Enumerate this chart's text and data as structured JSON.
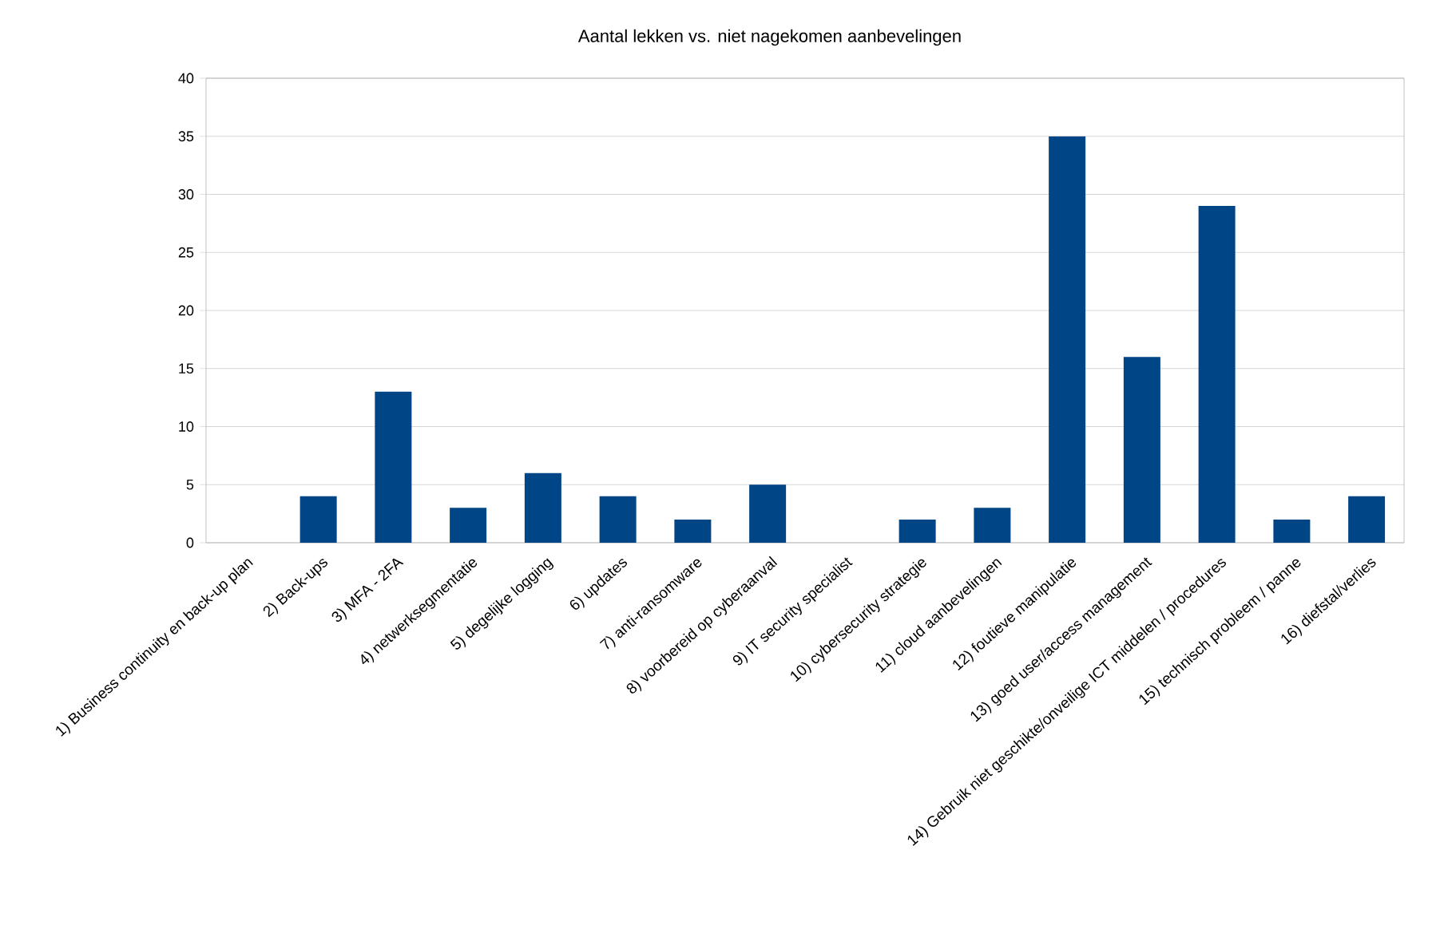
{
  "chart_data": {
    "type": "bar",
    "title": "Aantal lekken vs. niet nagekomen aanbevelingen",
    "categories": [
      "1) Business continuity en back-up plan",
      "2) Back-ups",
      "3) MFA - 2FA",
      "4) netwerksegmentatie",
      "5) degelijke  logging",
      "6) updates",
      "7) anti-ransomware",
      "8)  voorbereid op cyberaanval",
      "9) IT security specialist",
      "10)  cybersecurity strategie",
      "11) cloud aanbevelingen",
      "12) foutieve manipulatie",
      "13) goed user/access management",
      "14) Gebruik niet geschikte/onveilige ICT middelen / procedures",
      "15) technisch probleem  /  panne",
      "16) diefstal/verlies"
    ],
    "values": [
      0,
      4,
      13,
      3,
      6,
      4,
      2,
      5,
      0,
      2,
      3,
      35,
      16,
      29,
      2,
      4
    ],
    "color": "#004586",
    "ylim": [
      0,
      40
    ],
    "yticks": [
      0,
      5,
      10,
      15,
      20,
      25,
      30,
      35,
      40
    ],
    "grid": "y"
  }
}
